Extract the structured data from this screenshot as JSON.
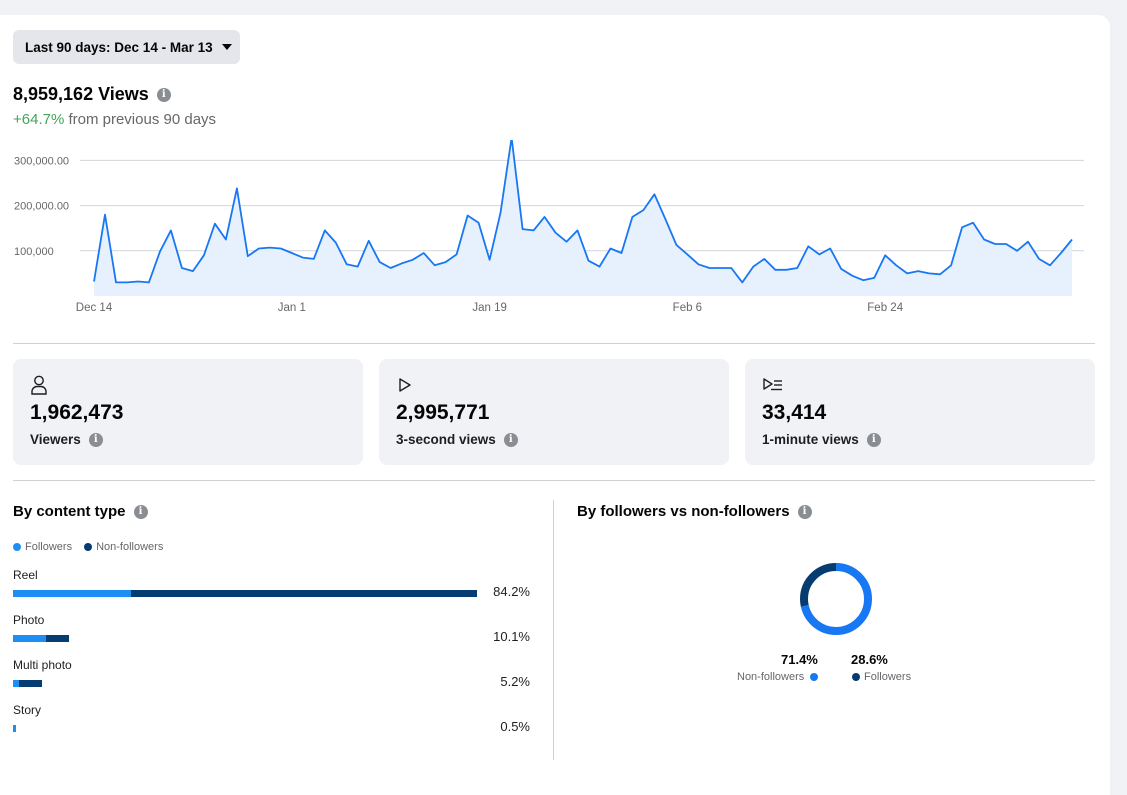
{
  "date_range": {
    "label": "Last 90 days: Dec 14 - Mar 13"
  },
  "summary": {
    "views": "8,959,162 Views",
    "change": "+64.7%",
    "change_suffix": " from previous 90 days"
  },
  "chart_data": {
    "type": "area",
    "yticks": [
      "300,000.00",
      "200,000.00",
      "100,000"
    ],
    "ytick_values": [
      300000,
      200000,
      100000
    ],
    "ylim": [
      0,
      345000
    ],
    "x_tick_labels": [
      "Dec 14",
      "Jan 1",
      "Jan 19",
      "Feb 6",
      "Feb 24"
    ],
    "x_tick_index": [
      0,
      18,
      36,
      54,
      72
    ],
    "values": [
      32000,
      180000,
      30000,
      30000,
      32000,
      30000,
      98000,
      145000,
      62000,
      55000,
      90000,
      160000,
      125000,
      238000,
      88000,
      105000,
      107000,
      105000,
      95000,
      85000,
      82000,
      145000,
      118000,
      70000,
      65000,
      122000,
      75000,
      62000,
      72000,
      80000,
      95000,
      68000,
      75000,
      92000,
      178000,
      162000,
      80000,
      185000,
      350000,
      148000,
      145000,
      175000,
      140000,
      120000,
      145000,
      78000,
      65000,
      105000,
      95000,
      175000,
      190000,
      225000,
      170000,
      113000,
      92000,
      70000,
      62000,
      62000,
      62000,
      30000,
      65000,
      82000,
      58000,
      58000,
      62000,
      110000,
      92000,
      105000,
      60000,
      45000,
      35000,
      40000,
      90000,
      68000,
      50000,
      55000,
      50000,
      48000,
      68000,
      152000,
      162000,
      125000,
      115000,
      115000,
      100000,
      120000,
      82000,
      68000,
      95000,
      125000
    ],
    "line_color": "#1877f2",
    "fill_color": "#e7f0fd"
  },
  "stats": [
    {
      "icon": "person-icon",
      "value": "1,962,473",
      "label": "Viewers"
    },
    {
      "icon": "play-icon",
      "value": "2,995,771",
      "label": "3-second views"
    },
    {
      "icon": "play-list-icon",
      "value": "33,414",
      "label": "1-minute views"
    }
  ],
  "content_type": {
    "title": "By content type",
    "legend": {
      "followers": "Followers",
      "non_followers": "Non-followers"
    },
    "colors": {
      "followers": "#1d8ff2",
      "non_followers": "#073c71"
    },
    "rows": [
      {
        "name": "Reel",
        "pct": "84.2%",
        "total": 84.2,
        "followers": 21.5
      },
      {
        "name": "Photo",
        "pct": "10.1%",
        "total": 10.1,
        "followers": 6.0
      },
      {
        "name": "Multi photo",
        "pct": "5.2%",
        "total": 5.2,
        "followers": 1.1
      },
      {
        "name": "Story",
        "pct": "0.5%",
        "total": 0.5,
        "followers": 0.5
      }
    ]
  },
  "followers_split": {
    "title": "By followers vs non-followers",
    "non_followers_pct": "71.4%",
    "followers_pct": "28.6%",
    "non_followers_label": "Non-followers",
    "followers_label": "Followers",
    "non_followers_value": 71.4,
    "followers_value": 28.6,
    "colors": {
      "non_followers": "#1877f2",
      "followers": "#073c71"
    }
  }
}
